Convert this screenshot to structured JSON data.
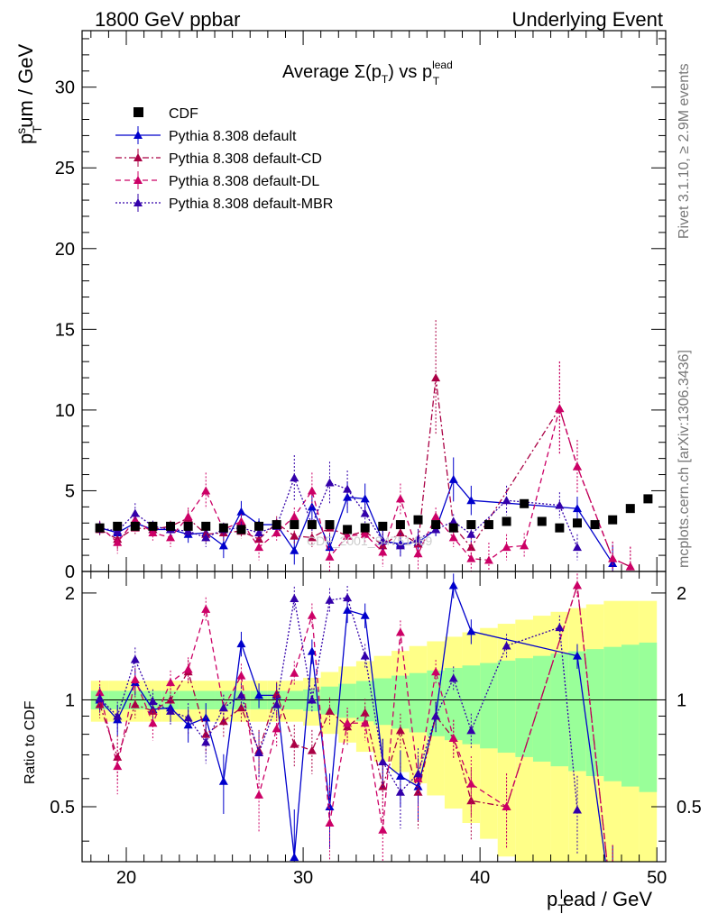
{
  "header": {
    "left": "1800 GeV ppbar",
    "right": "Underlying Event"
  },
  "side_labels": {
    "rivet": "Rivet 3.1.10, ≥ 2.9M events",
    "mcplots": "mcplots.cern.ch [arXiv:1306.3436]"
  },
  "watermark": "CDF_2001_S4751469",
  "chart_data": [
    {
      "type": "scatter",
      "title": "Average Σ(pT) vs pT lead",
      "title_parts": {
        "main": "Average Σ(p",
        "sub1": "T",
        "mid": ") vs p",
        "sup": "lead",
        "sub2": "T"
      },
      "xlabel": "pT lead / GeV",
      "xlabel_parts": {
        "p": "p",
        "sub": "T",
        "sup": "l",
        "rest": "ead / GeV"
      },
      "ylabel": "pT sum / GeV",
      "ylabel_parts": {
        "p": "p",
        "sub": "T",
        "sup": "s",
        "rest": "um / GeV"
      },
      "xlim": [
        17.5,
        50.5
      ],
      "ylim": [
        0,
        33.5
      ],
      "xticks": [
        20,
        30,
        40,
        50
      ],
      "xtick_labels": [
        "20",
        "30",
        "40",
        "50"
      ],
      "yticks": [
        0,
        5,
        10,
        15,
        20,
        25,
        30
      ],
      "ytick_labels": [
        "0",
        "5",
        "10",
        "15",
        "20",
        "25",
        "30"
      ],
      "legend_position": "top-left",
      "series": [
        {
          "name": "CDF",
          "color": "#000000",
          "marker": "square",
          "line": "none",
          "points": [
            [
              18.5,
              2.7
            ],
            [
              19.5,
              2.8
            ],
            [
              20.5,
              2.8
            ],
            [
              21.5,
              2.8
            ],
            [
              22.5,
              2.8
            ],
            [
              23.5,
              2.8
            ],
            [
              24.5,
              2.8
            ],
            [
              25.5,
              2.7
            ],
            [
              26.5,
              2.6
            ],
            [
              27.5,
              2.8
            ],
            [
              28.5,
              2.9
            ],
            [
              29.5,
              2.9
            ],
            [
              30.5,
              2.9
            ],
            [
              31.5,
              2.9
            ],
            [
              32.5,
              2.6
            ],
            [
              33.5,
              2.7
            ],
            [
              34.5,
              2.8
            ],
            [
              35.5,
              2.9
            ],
            [
              36.5,
              3.2
            ],
            [
              37.5,
              2.9
            ],
            [
              38.5,
              2.7
            ],
            [
              39.5,
              2.9
            ],
            [
              40.5,
              2.9
            ],
            [
              41.5,
              3.1
            ],
            [
              42.5,
              4.2
            ],
            [
              43.5,
              3.1
            ],
            [
              44.5,
              2.7
            ],
            [
              45.5,
              3.0
            ],
            [
              46.5,
              2.9
            ],
            [
              47.5,
              3.2
            ],
            [
              48.5,
              3.9
            ],
            [
              49.5,
              4.5
            ]
          ]
        },
        {
          "name": "Pythia 8.308 default",
          "color": "#0000cc",
          "marker": "triangle",
          "line": "solid",
          "points": [
            [
              18.5,
              2.7
            ],
            [
              19.5,
              2.4
            ],
            [
              20.5,
              3.0
            ],
            [
              21.5,
              2.6
            ],
            [
              22.5,
              2.6
            ],
            [
              23.5,
              2.3
            ],
            [
              24.5,
              2.4
            ],
            [
              25.5,
              1.6
            ],
            [
              26.5,
              3.7
            ],
            [
              27.5,
              2.9
            ],
            [
              28.5,
              2.9
            ],
            [
              29.5,
              1.3
            ],
            [
              30.5,
              4.0
            ],
            [
              31.5,
              1.5
            ],
            [
              32.5,
              4.6
            ],
            [
              33.5,
              4.5
            ],
            [
              34.5,
              1.9
            ],
            [
              35.5,
              1.7
            ],
            [
              36.5,
              1.8
            ],
            [
              37.5,
              2.6
            ],
            [
              38.5,
              5.7
            ],
            [
              39.5,
              4.4
            ],
            [
              45.5,
              3.9
            ],
            [
              47.5,
              0.5
            ]
          ]
        },
        {
          "name": "Pythia 8.308 default-CD",
          "color": "#aa0044",
          "marker": "triangle",
          "line": "dashdot",
          "points": [
            [
              18.5,
              2.6
            ],
            [
              19.5,
              2.0
            ],
            [
              20.5,
              2.7
            ],
            [
              21.5,
              2.6
            ],
            [
              22.5,
              2.8
            ],
            [
              23.5,
              3.3
            ],
            [
              24.5,
              2.3
            ],
            [
              25.5,
              2.4
            ],
            [
              26.5,
              2.5
            ],
            [
              27.5,
              2.0
            ],
            [
              28.5,
              3.0
            ],
            [
              29.5,
              2.2
            ],
            [
              30.5,
              2.1
            ],
            [
              31.5,
              2.7
            ],
            [
              32.5,
              2.2
            ],
            [
              33.5,
              2.5
            ],
            [
              34.5,
              1.6
            ],
            [
              35.5,
              2.4
            ],
            [
              36.5,
              1.7
            ],
            [
              37.5,
              12.0
            ],
            [
              38.5,
              2.8
            ],
            [
              39.5,
              1.5
            ],
            [
              44.5,
              10.1
            ],
            [
              45.5,
              6.5
            ],
            [
              47.5,
              0.8
            ],
            [
              48.5,
              0.3
            ]
          ]
        },
        {
          "name": "Pythia 8.308 default-DL",
          "color": "#cc0066",
          "marker": "triangle",
          "line": "dashed",
          "points": [
            [
              18.5,
              2.8
            ],
            [
              19.5,
              1.8
            ],
            [
              20.5,
              3.2
            ],
            [
              21.5,
              2.4
            ],
            [
              22.5,
              2.1
            ],
            [
              23.5,
              3.4
            ],
            [
              24.5,
              5.0
            ],
            [
              25.5,
              2.6
            ],
            [
              26.5,
              3.1
            ],
            [
              27.5,
              1.5
            ],
            [
              28.5,
              2.4
            ],
            [
              29.5,
              3.4
            ],
            [
              30.5,
              5.0
            ],
            [
              31.5,
              0.9
            ],
            [
              32.5,
              2.2
            ],
            [
              33.5,
              2.3
            ],
            [
              34.5,
              1.2
            ],
            [
              35.5,
              4.5
            ],
            [
              36.5,
              1.1
            ],
            [
              37.5,
              3.4
            ],
            [
              38.5,
              2.1
            ],
            [
              39.5,
              0.8
            ],
            [
              40.5,
              0.7
            ],
            [
              41.5,
              1.5
            ],
            [
              42.5,
              1.6
            ],
            [
              44.5,
              10.1
            ],
            [
              45.5,
              6.5
            ],
            [
              47.5,
              0.8
            ],
            [
              48.5,
              0.3
            ]
          ]
        },
        {
          "name": "Pythia 8.308 default-MBR",
          "color": "#3300aa",
          "marker": "triangle",
          "line": "dotted",
          "points": [
            [
              18.5,
              2.7
            ],
            [
              19.5,
              2.5
            ],
            [
              20.5,
              3.6
            ],
            [
              21.5,
              2.8
            ],
            [
              22.5,
              2.6
            ],
            [
              23.5,
              2.5
            ],
            [
              24.5,
              2.1
            ],
            [
              25.5,
              2.6
            ],
            [
              26.5,
              2.7
            ],
            [
              27.5,
              2.4
            ],
            [
              28.5,
              2.8
            ],
            [
              29.5,
              5.8
            ],
            [
              30.5,
              2.9
            ],
            [
              31.5,
              5.5
            ],
            [
              32.5,
              5.1
            ],
            [
              33.5,
              3.6
            ],
            [
              34.5,
              1.9
            ],
            [
              35.5,
              1.6
            ],
            [
              36.5,
              2.0
            ],
            [
              37.5,
              2.6
            ],
            [
              38.5,
              3.1
            ],
            [
              39.5,
              2.3
            ],
            [
              41.5,
              4.4
            ],
            [
              44.5,
              4.1
            ],
            [
              45.5,
              1.5
            ]
          ]
        }
      ]
    },
    {
      "type": "line",
      "ylabel": "Ratio to CDF",
      "xlim": [
        17.5,
        50.5
      ],
      "ylim": [
        0.35,
        2.3
      ],
      "yticks": [
        0.5,
        1,
        2
      ],
      "ytick_labels": [
        "0.5",
        "1",
        "2"
      ],
      "reference_line": 1,
      "bands": {
        "inner_color": "#99ff99",
        "outer_color": "#ffff88"
      },
      "series": [
        {
          "name": "Pythia 8.308 default",
          "color": "#0000cc",
          "points": [
            [
              18.5,
              1.0
            ],
            [
              19.5,
              0.88
            ],
            [
              20.5,
              1.12
            ],
            [
              21.5,
              0.94
            ],
            [
              22.5,
              0.95
            ],
            [
              23.5,
              0.85
            ],
            [
              24.5,
              0.89
            ],
            [
              25.5,
              0.59
            ],
            [
              26.5,
              1.44
            ],
            [
              27.5,
              1.03
            ],
            [
              28.5,
              1.03
            ],
            [
              29.5,
              0.36
            ],
            [
              30.5,
              1.37
            ],
            [
              31.5,
              0.5
            ],
            [
              32.5,
              1.79
            ],
            [
              33.5,
              1.73
            ],
            [
              34.5,
              0.67
            ],
            [
              35.5,
              0.61
            ],
            [
              36.5,
              0.57
            ],
            [
              37.5,
              0.9
            ],
            [
              38.5,
              2.1
            ],
            [
              39.5,
              1.56
            ],
            [
              45.5,
              1.33
            ],
            [
              47.5,
              0.25
            ]
          ]
        },
        {
          "name": "Pythia 8.308 default-CD",
          "color": "#aa0044",
          "points": [
            [
              18.5,
              0.97
            ],
            [
              19.5,
              0.69
            ],
            [
              20.5,
              0.97
            ],
            [
              21.5,
              0.93
            ],
            [
              22.5,
              1.0
            ],
            [
              23.5,
              1.2
            ],
            [
              24.5,
              0.8
            ],
            [
              25.5,
              0.87
            ],
            [
              26.5,
              0.95
            ],
            [
              27.5,
              0.72
            ],
            [
              28.5,
              1.04
            ],
            [
              29.5,
              0.75
            ],
            [
              30.5,
              0.72
            ],
            [
              31.5,
              0.93
            ],
            [
              32.5,
              0.84
            ],
            [
              33.5,
              0.92
            ],
            [
              34.5,
              0.57
            ],
            [
              35.5,
              0.82
            ],
            [
              36.5,
              0.55
            ],
            [
              37.5,
              0.9
            ],
            [
              38.5,
              0.78
            ],
            [
              39.5,
              0.52
            ],
            [
              41.5,
              0.5
            ],
            [
              45.5,
              2.1
            ],
            [
              47.5,
              0.25
            ]
          ]
        },
        {
          "name": "Pythia 8.308 default-DL",
          "color": "#cc0066",
          "points": [
            [
              18.5,
              1.05
            ],
            [
              19.5,
              0.65
            ],
            [
              20.5,
              1.14
            ],
            [
              21.5,
              0.86
            ],
            [
              22.5,
              1.12
            ],
            [
              23.5,
              1.22
            ],
            [
              24.5,
              1.8
            ],
            [
              25.5,
              0.95
            ],
            [
              26.5,
              1.17
            ],
            [
              27.5,
              0.54
            ],
            [
              28.5,
              0.83
            ],
            [
              29.5,
              1.19
            ],
            [
              30.5,
              1.73
            ],
            [
              31.5,
              0.45
            ],
            [
              32.5,
              0.86
            ],
            [
              33.5,
              0.86
            ],
            [
              34.5,
              0.43
            ],
            [
              35.5,
              1.55
            ],
            [
              36.5,
              0.6
            ],
            [
              37.5,
              1.2
            ],
            [
              38.5,
              0.78
            ],
            [
              39.5,
              0.58
            ],
            [
              41.5,
              0.5
            ],
            [
              45.5,
              2.1
            ],
            [
              47.5,
              0.25
            ]
          ]
        },
        {
          "name": "Pythia 8.308 default-MBR",
          "color": "#3300aa",
          "points": [
            [
              18.5,
              1.01
            ],
            [
              19.5,
              0.9
            ],
            [
              20.5,
              1.3
            ],
            [
              21.5,
              0.99
            ],
            [
              22.5,
              0.93
            ],
            [
              23.5,
              0.89
            ],
            [
              24.5,
              0.76
            ],
            [
              25.5,
              0.95
            ],
            [
              26.5,
              1.03
            ],
            [
              27.5,
              0.71
            ],
            [
              28.5,
              0.97
            ],
            [
              29.5,
              1.93
            ],
            [
              30.5,
              1.0
            ],
            [
              31.5,
              1.91
            ],
            [
              32.5,
              1.94
            ],
            [
              33.5,
              1.33
            ],
            [
              34.5,
              0.67
            ],
            [
              35.5,
              0.55
            ],
            [
              36.5,
              0.62
            ],
            [
              37.5,
              0.9
            ],
            [
              38.5,
              1.15
            ],
            [
              39.5,
              0.82
            ],
            [
              41.5,
              1.42
            ],
            [
              44.5,
              1.6
            ],
            [
              45.5,
              0.49
            ]
          ]
        }
      ]
    }
  ]
}
